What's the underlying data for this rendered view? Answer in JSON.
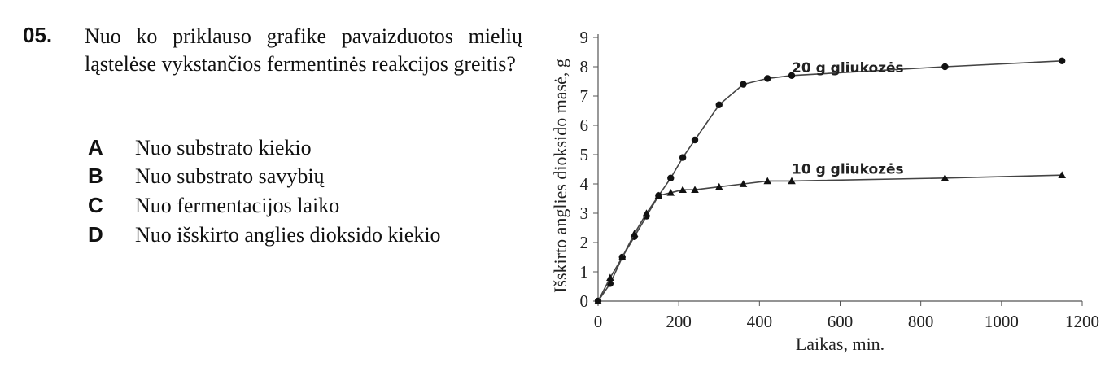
{
  "question": {
    "number": "05.",
    "text": "Nuo ko priklauso grafike pavaizduotos mielių ląstelėse vykstančios fermentinės reakcijos greitis?",
    "options": [
      {
        "letter": "A",
        "text": "Nuo substrato kiekio"
      },
      {
        "letter": "B",
        "text": "Nuo substrato savybių"
      },
      {
        "letter": "C",
        "text": "Nuo fermentacijos laiko"
      },
      {
        "letter": "D",
        "text": "Nuo išskirto anglies dioksido kiekio"
      }
    ]
  },
  "chart_data": {
    "type": "line",
    "xlabel": "Laikas, min.",
    "ylabel": "Išskirto anglies dioksido masė, g",
    "xlim": [
      0,
      1200
    ],
    "ylim": [
      0,
      9
    ],
    "xticks": [
      0,
      200,
      400,
      600,
      800,
      1000,
      1200
    ],
    "yticks": [
      0,
      1,
      2,
      3,
      4,
      5,
      6,
      7,
      8,
      9
    ],
    "grid": false,
    "series": [
      {
        "name": "20 g gliukozės",
        "marker": "circle",
        "x": [
          0,
          30,
          60,
          90,
          120,
          150,
          180,
          210,
          240,
          300,
          360,
          420,
          480,
          860,
          1150
        ],
        "y": [
          0,
          0.6,
          1.5,
          2.2,
          2.9,
          3.6,
          4.2,
          4.9,
          5.5,
          6.7,
          7.4,
          7.6,
          7.7,
          8.0,
          8.2
        ]
      },
      {
        "name": "10 g gliukozės",
        "marker": "triangle",
        "x": [
          0,
          30,
          60,
          90,
          120,
          150,
          180,
          210,
          240,
          300,
          360,
          420,
          480,
          860,
          1150
        ],
        "y": [
          0,
          0.8,
          1.5,
          2.3,
          3.0,
          3.6,
          3.7,
          3.8,
          3.8,
          3.9,
          4.0,
          4.1,
          4.1,
          4.2,
          4.3
        ]
      }
    ]
  }
}
